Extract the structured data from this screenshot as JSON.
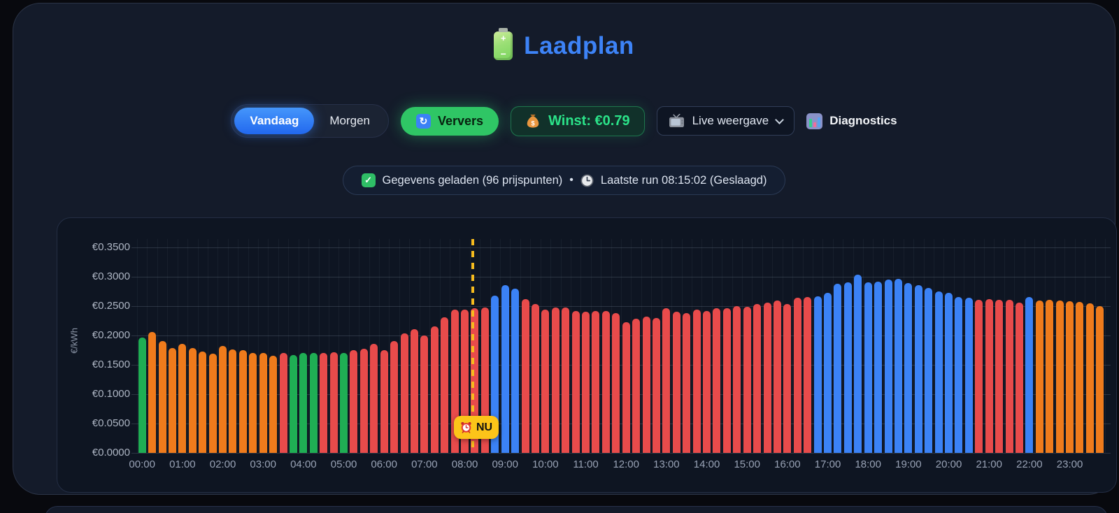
{
  "title": "Laadplan",
  "controls": {
    "tab_today": "Vandaag",
    "tab_tomorrow": "Morgen",
    "refresh_label": "Ververs",
    "profit_label": "Winst: €0.79",
    "view_select": "Live weergave",
    "diagnostics_label": "Diagnostics"
  },
  "status": {
    "loaded_text": "Gegevens geladen (96 prijspunten)",
    "separator": "•",
    "lastrun_text": "Laatste run 08:15:02 (Geslaagd)"
  },
  "chart_data": {
    "type": "bar",
    "ylabel": "€/kWh",
    "ylim": [
      0,
      0.35
    ],
    "ytick_labels": [
      "€0.0000",
      "€0.0500",
      "€0.1000",
      "€0.1500",
      "€0.2000",
      "€0.2500",
      "€0.3000",
      "€0.3500"
    ],
    "x_hour_labels": [
      "00:00",
      "01:00",
      "02:00",
      "03:00",
      "04:00",
      "05:00",
      "06:00",
      "07:00",
      "08:00",
      "09:00",
      "10:00",
      "11:00",
      "12:00",
      "13:00",
      "14:00",
      "15:00",
      "16:00",
      "17:00",
      "18:00",
      "19:00",
      "20:00",
      "21:00",
      "22:00",
      "23:00"
    ],
    "now_label": "NU",
    "now_time": "08:15",
    "grid": true,
    "palette": {
      "green": "#1fae54",
      "orange": "#ef7b1c",
      "red": "#e84b4b",
      "blue": "#3b82f6"
    },
    "categories": [
      "00:00",
      "00:15",
      "00:30",
      "00:45",
      "01:00",
      "01:15",
      "01:30",
      "01:45",
      "02:00",
      "02:15",
      "02:30",
      "02:45",
      "03:00",
      "03:15",
      "03:30",
      "03:45",
      "04:00",
      "04:15",
      "04:30",
      "04:45",
      "05:00",
      "05:15",
      "05:30",
      "05:45",
      "06:00",
      "06:15",
      "06:30",
      "06:45",
      "07:00",
      "07:15",
      "07:30",
      "07:45",
      "08:00",
      "08:15",
      "08:30",
      "08:45",
      "09:00",
      "09:15",
      "09:30",
      "09:45",
      "10:00",
      "10:15",
      "10:30",
      "10:45",
      "11:00",
      "11:15",
      "11:30",
      "11:45",
      "12:00",
      "12:15",
      "12:30",
      "12:45",
      "13:00",
      "13:15",
      "13:30",
      "13:45",
      "14:00",
      "14:15",
      "14:30",
      "14:45",
      "15:00",
      "15:15",
      "15:30",
      "15:45",
      "16:00",
      "16:15",
      "16:30",
      "16:45",
      "17:00",
      "17:15",
      "17:30",
      "17:45",
      "18:00",
      "18:15",
      "18:30",
      "18:45",
      "19:00",
      "19:15",
      "19:30",
      "19:45",
      "20:00",
      "20:15",
      "20:30",
      "20:45",
      "21:00",
      "21:15",
      "21:30",
      "21:45",
      "22:00",
      "22:15",
      "22:30",
      "22:45",
      "23:00",
      "23:15",
      "23:30",
      "23:45"
    ],
    "values": [
      0.196,
      0.206,
      0.19,
      0.178,
      0.186,
      0.179,
      0.173,
      0.169,
      0.182,
      0.176,
      0.175,
      0.17,
      0.17,
      0.166,
      0.17,
      0.167,
      0.17,
      0.17,
      0.17,
      0.172,
      0.17,
      0.175,
      0.177,
      0.186,
      0.175,
      0.19,
      0.203,
      0.211,
      0.2,
      0.216,
      0.231,
      0.244,
      0.244,
      0.246,
      0.248,
      0.268,
      0.286,
      0.28,
      0.262,
      0.254,
      0.244,
      0.248,
      0.248,
      0.242,
      0.241,
      0.242,
      0.242,
      0.238,
      0.223,
      0.229,
      0.232,
      0.23,
      0.246,
      0.24,
      0.238,
      0.244,
      0.242,
      0.246,
      0.246,
      0.25,
      0.249,
      0.254,
      0.256,
      0.26,
      0.253,
      0.264,
      0.266,
      0.267,
      0.273,
      0.288,
      0.29,
      0.304,
      0.291,
      0.292,
      0.295,
      0.297,
      0.289,
      0.286,
      0.281,
      0.275,
      0.273,
      0.266,
      0.264,
      0.261,
      0.262,
      0.261,
      0.261,
      0.256,
      0.265,
      0.26,
      0.261,
      0.259,
      0.258,
      0.257,
      0.255,
      0.25
    ],
    "colors": [
      "green",
      "orange",
      "orange",
      "orange",
      "orange",
      "orange",
      "orange",
      "orange",
      "orange",
      "orange",
      "orange",
      "orange",
      "orange",
      "orange",
      "red",
      "green",
      "green",
      "green",
      "red",
      "red",
      "green",
      "red",
      "red",
      "red",
      "red",
      "red",
      "red",
      "red",
      "red",
      "red",
      "red",
      "red",
      "red",
      "red",
      "red",
      "blue",
      "blue",
      "blue",
      "red",
      "red",
      "red",
      "red",
      "red",
      "red",
      "red",
      "red",
      "red",
      "red",
      "red",
      "red",
      "red",
      "red",
      "red",
      "red",
      "red",
      "red",
      "red",
      "red",
      "red",
      "red",
      "red",
      "red",
      "red",
      "red",
      "red",
      "red",
      "red",
      "blue",
      "blue",
      "blue",
      "blue",
      "blue",
      "blue",
      "blue",
      "blue",
      "blue",
      "blue",
      "blue",
      "blue",
      "blue",
      "blue",
      "blue",
      "blue",
      "red",
      "red",
      "red",
      "red",
      "red",
      "blue",
      "orange",
      "orange",
      "orange",
      "orange",
      "orange",
      "orange",
      "orange"
    ]
  }
}
